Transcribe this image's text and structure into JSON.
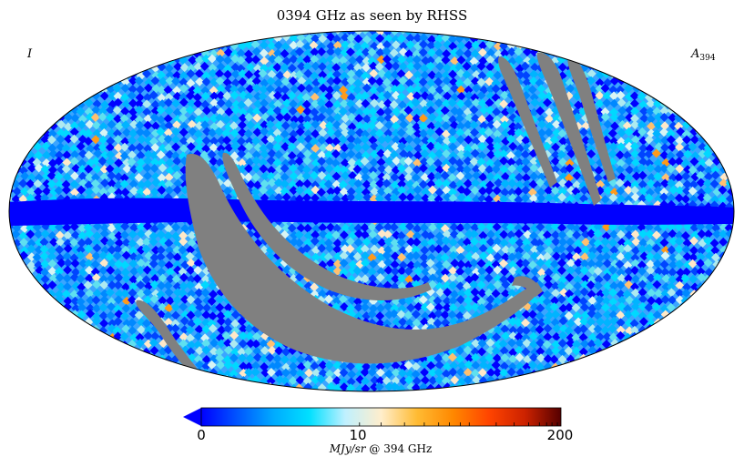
{
  "title": "0394 GHz as seen by RHSS",
  "corner_left": "I",
  "corner_right_main": "A",
  "corner_right_sub": "394",
  "colorbar": {
    "min_label": "0",
    "mid_label": "10",
    "max_label": "200",
    "unit_prefix": "MJy/sr",
    "unit_suffix": "@ 394 GHz",
    "extend": "min",
    "colormap_stops": [
      "#0000ff",
      "#0055ff",
      "#00aaff",
      "#00e0ff",
      "#bff0ff",
      "#ffeecc",
      "#ffbb33",
      "#ff8800",
      "#ff4400",
      "#cc2200",
      "#550000"
    ]
  },
  "map": {
    "projection": "mollweide",
    "masked_color": "#808080",
    "outline_color": "#000000"
  }
}
